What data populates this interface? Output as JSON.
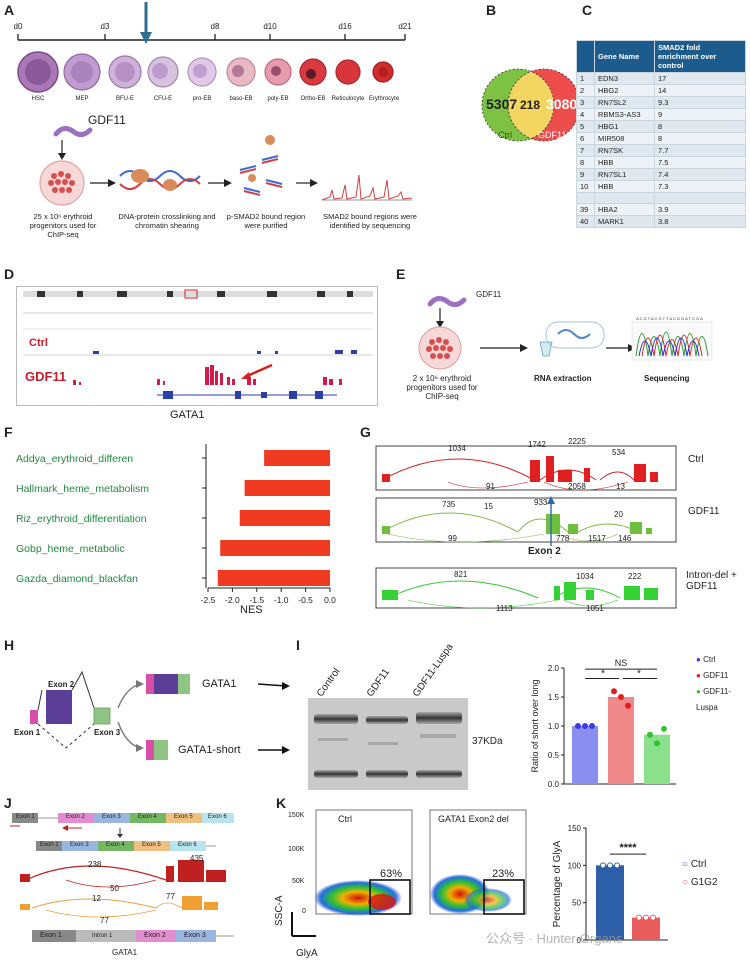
{
  "panel_letters": {
    "a": "A",
    "b": "B",
    "c": "C",
    "d": "D",
    "e": "E",
    "f": "F",
    "g": "G",
    "h": "H",
    "i": "I",
    "j": "J",
    "k": "K"
  },
  "panel_a": {
    "days": [
      "d0",
      "d3",
      "d8",
      "d10",
      "d16",
      "d21"
    ],
    "cells": [
      "HSC",
      "MEP",
      "BFU-E",
      "CFU-E",
      "pro-EB",
      "baso-EB",
      "poly-EB",
      "Ortho-EB",
      "Reticulocyte",
      "Erythrocyte"
    ],
    "treatment": "GDF11",
    "steps": [
      "25 x 10⁶ erythroid progenitors used for ChIP-seq",
      "DNA-protein crosslinking and chromatin shearing",
      "p-SMAD2 bound region were purified",
      "SMAD2 bound regions were identified by sequencing"
    ]
  },
  "panel_b": {
    "left_count": "5307",
    "overlap_count": "218",
    "right_count": "3080",
    "left_label": "Ctrl",
    "right_label": "GDF11",
    "colors": {
      "left": "#7dc242",
      "right": "#ef4c4c",
      "overlap": "#f2d661"
    }
  },
  "panel_c": {
    "headers": [
      "",
      "Gene Name",
      "SMAD2 fold enrichment over control"
    ],
    "rows": [
      {
        "rank": "1",
        "gene": "EDN3",
        "fold": "17"
      },
      {
        "rank": "2",
        "gene": "HBG2",
        "fold": "14"
      },
      {
        "rank": "3",
        "gene": "RN7SL2",
        "fold": "9.3"
      },
      {
        "rank": "4",
        "gene": "RBMS3-AS3",
        "fold": "9"
      },
      {
        "rank": "5",
        "gene": "HBG1",
        "fold": "8"
      },
      {
        "rank": "6",
        "gene": "MIR508",
        "fold": "8"
      },
      {
        "rank": "7",
        "gene": "RN7SK",
        "fold": "7.7"
      },
      {
        "rank": "8",
        "gene": "HBB",
        "fold": "7.5"
      },
      {
        "rank": "9",
        "gene": "RN7SL1",
        "fold": "7.4"
      },
      {
        "rank": "10",
        "gene": "HBB",
        "fold": "7.3"
      },
      {
        "rank": "",
        "gene": "",
        "fold": ""
      },
      {
        "rank": "39",
        "gene": "HBA2",
        "fold": "3.9"
      },
      {
        "rank": "40",
        "gene": "MARK1",
        "fold": "3.8"
      }
    ]
  },
  "panel_d": {
    "ctrl_label": "Ctrl",
    "gdf11_label": "GDF11",
    "gene_label": "GATA1"
  },
  "panel_e": {
    "treatment": "GDF11",
    "cells_caption": "2 x 10⁶ erythroid progenitors used for ChIP-seq",
    "rna_label": "RNA extraction",
    "seq_label": "Sequencing"
  },
  "panel_f": {
    "xlabel": "NES",
    "ticks": [
      "-2.5",
      "-2.0",
      "-1.5",
      "-1.0",
      "-0.5",
      "0.0"
    ]
  },
  "chart_data": [
    {
      "type": "bar",
      "orientation": "horizontal",
      "title": "",
      "xlabel": "NES",
      "ylabel": "",
      "categories": [
        "Addya_erythroid_differen",
        "Hallmark_heme_metabolism",
        "Riz_erythroid_differentiation",
        "Gobp_heme_metabolic",
        "Gazda_diamond_blackfan"
      ],
      "values": [
        -1.35,
        -1.75,
        -1.85,
        -2.25,
        -2.3
      ],
      "xlim": [
        -2.5,
        0.0
      ],
      "color": "#f03a22"
    },
    {
      "type": "bar",
      "title": "",
      "xlabel": "",
      "ylabel": "Ratio of short over long",
      "categories": [
        "Ctrl",
        "GDF11",
        "GDF11-Luspa"
      ],
      "values": [
        1.0,
        1.5,
        0.85
      ],
      "points": [
        [
          1.0,
          1.0,
          1.0
        ],
        [
          1.6,
          1.5,
          1.35
        ],
        [
          0.85,
          0.7,
          0.95
        ]
      ],
      "ylim": [
        0.0,
        2.0
      ],
      "yticks": [
        "0.0",
        "0.5",
        "1.0",
        "1.5",
        "2.0"
      ],
      "colors": [
        "#8a8ef0",
        "#f08a8a",
        "#8be08b"
      ],
      "point_colors": [
        "#3a3ae6",
        "#e61c1c",
        "#2ec42e"
      ],
      "significance": [
        "*",
        "*",
        "NS"
      ]
    },
    {
      "type": "bar",
      "title": "",
      "xlabel": "",
      "ylabel": "Percentage of GlyA",
      "categories": [
        "Ctrl",
        "G1G2"
      ],
      "values": [
        100,
        30
      ],
      "ylim": [
        0,
        150
      ],
      "yticks": [
        "0",
        "50",
        "100",
        "150"
      ],
      "colors": [
        "#2d5fa8",
        "#e85c5c"
      ],
      "significance": [
        "****"
      ]
    }
  ],
  "panel_g": {
    "tracks": [
      {
        "label": "Ctrl",
        "numbers": [
          "1034",
          "1742",
          "2225",
          "534",
          "91",
          "2058",
          "13"
        ]
      },
      {
        "label": "GDF11",
        "numbers": [
          "735",
          "15",
          "933",
          "20",
          "99",
          "778",
          "1517",
          "146"
        ]
      },
      {
        "label": "Intron-del + GDF11",
        "numbers": [
          "821",
          "1034",
          "222",
          "1113",
          "1051"
        ]
      }
    ],
    "exon_label": "Exon 2"
  },
  "panel_h": {
    "exon1": "Exon 1",
    "exon2": "Exon 2",
    "exon3": "Exon 3",
    "gata1": "GATA1",
    "gata1_short": "GATA1-short"
  },
  "panel_i": {
    "lanes": [
      "Control",
      "GDF11",
      "GDF11-Luspa"
    ],
    "kda": "37KDa",
    "legend": [
      "Ctrl",
      "GDF11",
      "GDF11-Luspa"
    ]
  },
  "panel_j": {
    "exons_top": [
      "Exon 1",
      "Exon 2",
      "Exon 3",
      "Exon 4",
      "Exon 5",
      "Exon 6"
    ],
    "exons_mid": [
      "Exon 1",
      "Exon 3",
      "Exon 4",
      "Exon 5",
      "Exon 6"
    ],
    "numbers": [
      "238",
      "50",
      "435",
      "12",
      "77",
      "77"
    ],
    "exons_bottom": [
      "Exon 1",
      "Intron 1",
      "Exon 2",
      "Exon 3"
    ],
    "gene": "GATA1"
  },
  "panel_k": {
    "plot1_title": "Ctrl",
    "plot1_pct": "63%",
    "plot2_title": "GATA1 Exon2 del",
    "plot2_pct": "23%",
    "yticks": [
      "0",
      "50K",
      "100K",
      "150K"
    ],
    "ylabel": "SSC-A",
    "xlabel": "GlyA",
    "legend": [
      "Ctrl",
      "G1G2"
    ],
    "watermark": "公众号 · Hunter-Organs"
  }
}
